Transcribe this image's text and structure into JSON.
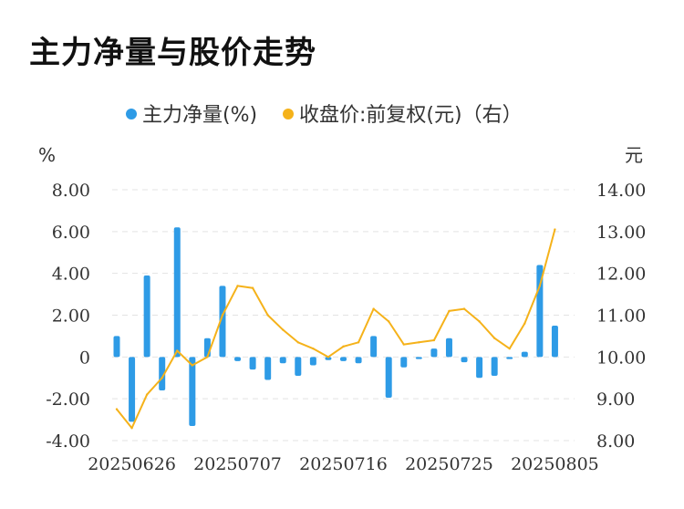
{
  "title": "主力净量与股价走势",
  "colors": {
    "bar": "#2e9be6",
    "line": "#f5b21a"
  },
  "chart_data": {
    "type": "bar+line",
    "legend": [
      {
        "name": "主力净量(%)",
        "color": "#2e9be6",
        "marker": "circle"
      },
      {
        "name": "收盘价:前复权(元)（右）",
        "color": "#f5b21a",
        "marker": "circle"
      }
    ],
    "legend_position": "top-center",
    "left_unit": "%",
    "right_unit": "元",
    "y_left": {
      "min": -4,
      "max": 8,
      "ticks": [
        "8.00",
        "6.00",
        "4.00",
        "2.00",
        "0",
        "-2.00",
        "-4.00"
      ],
      "tick_values": [
        8,
        6,
        4,
        2,
        0,
        -2,
        -4
      ]
    },
    "y_right": {
      "min": 8,
      "max": 14,
      "ticks": [
        "14.00",
        "13.00",
        "12.00",
        "11.00",
        "10.00",
        "9.00",
        "8.00"
      ],
      "tick_values": [
        14,
        13,
        12,
        11,
        10,
        9,
        8
      ]
    },
    "x_tick_labels": [
      "20250626",
      "20250707",
      "20250716",
      "20250725",
      "20250805"
    ],
    "x_tick_indices": [
      1,
      8,
      15,
      22,
      29
    ],
    "grid": "horizontal-dashed",
    "categories": [
      "20250625",
      "20250626",
      "20250627",
      "20250630",
      "20250701",
      "20250702",
      "20250703",
      "20250704",
      "20250707",
      "20250708",
      "20250709",
      "20250710",
      "20250711",
      "20250714",
      "20250715",
      "20250716",
      "20250717",
      "20250718",
      "20250721",
      "20250722",
      "20250723",
      "20250724",
      "20250725",
      "20250728",
      "20250729",
      "20250730",
      "20250731",
      "20250801",
      "20250804",
      "20250805",
      "20250806"
    ],
    "series": [
      {
        "name": "主力净量(%)",
        "type": "bar",
        "axis": "left",
        "values": [
          1.0,
          -3.1,
          3.9,
          -1.6,
          6.2,
          -3.3,
          0.9,
          3.4,
          -0.2,
          -0.6,
          -1.1,
          -0.3,
          -0.9,
          -0.4,
          -0.15,
          -0.2,
          -0.3,
          1.0,
          -1.95,
          -0.5,
          -0.1,
          0.4,
          0.9,
          -0.25,
          -1.0,
          -0.9,
          -0.1,
          0.25,
          4.4,
          1.5,
          0
        ]
      },
      {
        "name": "收盘价:前复权(元)（右）",
        "type": "line",
        "axis": "right",
        "values": [
          8.75,
          8.3,
          9.1,
          9.5,
          10.15,
          9.8,
          10.0,
          11.0,
          11.7,
          11.65,
          11.0,
          10.65,
          10.35,
          10.2,
          10.0,
          10.25,
          10.35,
          11.15,
          10.85,
          10.3,
          10.35,
          10.4,
          11.1,
          11.15,
          10.85,
          10.45,
          10.2,
          10.8,
          11.7,
          13.05,
          null
        ]
      }
    ]
  }
}
